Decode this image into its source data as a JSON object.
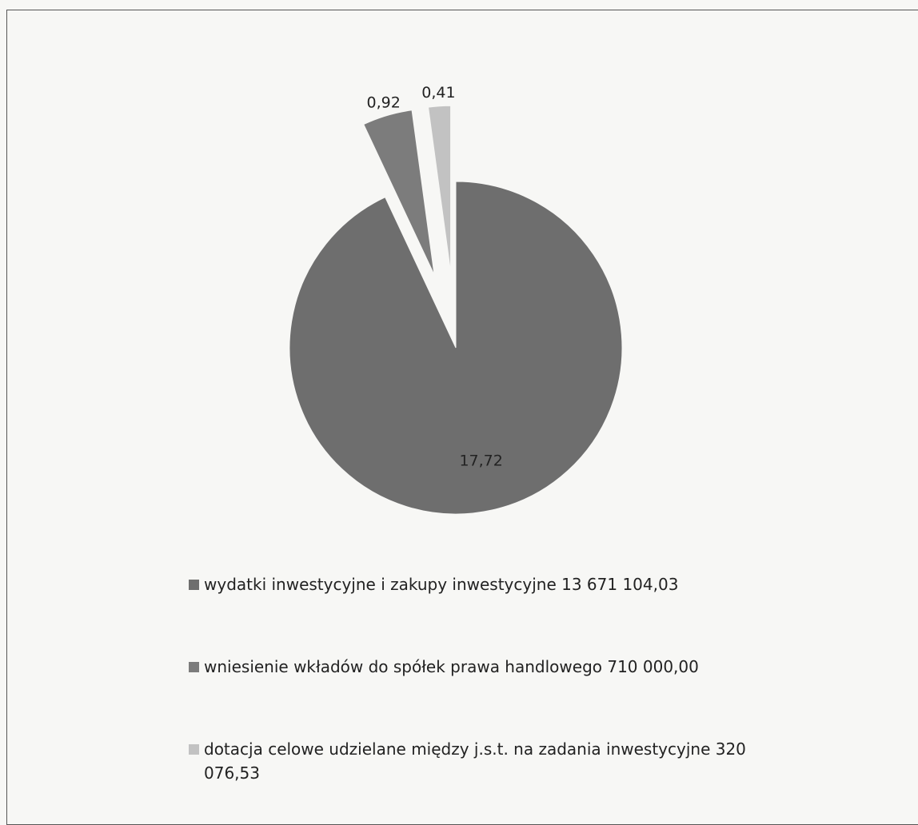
{
  "chart_data": {
    "type": "pie",
    "categories": [
      "wydatki inwestycyjne i zakupy inwestycyjne 13 671 104,03",
      "wniesienie wkładów do spółek prawa handlowego 710 000,00",
      "dotacja celowe udzielane między j.s.t. na zadania inwestycyjne 320 076,53"
    ],
    "values": [
      17.72,
      0.92,
      0.41
    ],
    "value_labels": [
      "17,72",
      "0,92",
      "0,41"
    ],
    "colors": [
      "#6e6e6e",
      "#7c7c7c",
      "#c2c2c2"
    ]
  }
}
